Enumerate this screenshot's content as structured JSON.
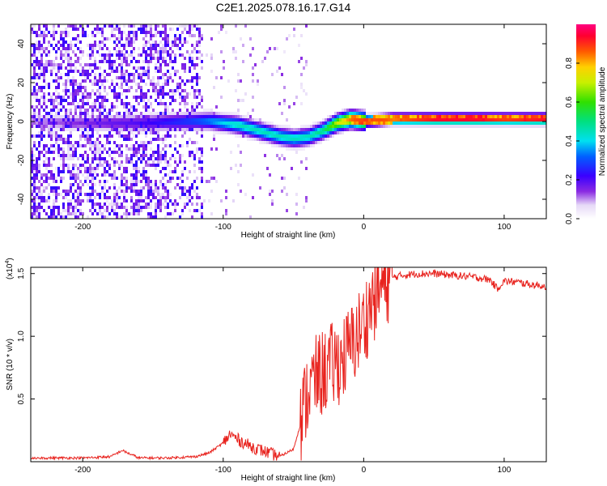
{
  "title": "C2E1.2025.078.16.17.G14",
  "chart_data": [
    {
      "type": "heatmap",
      "xlabel": "Height of straight line (km)",
      "ylabel": "Frequency (Hz)",
      "xlim": [
        -237,
        130
      ],
      "ylim": [
        -50,
        50
      ],
      "xticks": [
        -200,
        -100,
        0,
        100
      ],
      "yticks": [
        -40,
        -20,
        0,
        20,
        40
      ],
      "colorbar": {
        "label": "Normalized spectral amplitude",
        "range": [
          0,
          1
        ],
        "ticks": [
          0.0,
          0.2,
          0.4,
          0.6,
          0.8
        ]
      },
      "ridge": {
        "description_x": [
          -237,
          -200,
          -160,
          -120,
          -110,
          -100,
          -90,
          -80,
          -70,
          -60,
          -50,
          -40,
          -30,
          -20,
          -10,
          0,
          20,
          50,
          80,
          100,
          130
        ],
        "freq": [
          1,
          0,
          0,
          1,
          1,
          0,
          -1,
          -3,
          -5,
          -7,
          -8,
          -7,
          -4,
          0,
          2,
          1,
          2,
          2,
          2,
          2,
          2
        ],
        "peak_amplitude": [
          0.1,
          0.15,
          0.2,
          0.3,
          0.35,
          0.4,
          0.45,
          0.45,
          0.45,
          0.45,
          0.45,
          0.45,
          0.5,
          0.7,
          0.85,
          0.9,
          0.85,
          0.95,
          0.95,
          0.9,
          0.95
        ]
      }
    },
    {
      "type": "line",
      "xlabel": "Height of straight line (km)",
      "ylabel": "SNR (10 * v/v)",
      "yscale_label": "(x10",
      "yscale_exp": "4",
      "yscale_close": ")",
      "xlim": [
        -237,
        130
      ],
      "ylim": [
        0,
        1.55
      ],
      "xticks": [
        -200,
        -100,
        0,
        100
      ],
      "yticks": [
        0.5,
        1.0,
        1.5
      ],
      "series": [
        {
          "color": "#e8231e",
          "x": [
            -237,
            -220,
            -200,
            -180,
            -172,
            -160,
            -140,
            -120,
            -110,
            -100,
            -95,
            -90,
            -80,
            -70,
            -60,
            -50,
            -45,
            -40,
            -35,
            -30,
            -25,
            -20,
            -15,
            -10,
            -5,
            0,
            5,
            10,
            15,
            20,
            30,
            40,
            50,
            60,
            70,
            80,
            90,
            95,
            100,
            110,
            120,
            130
          ],
          "y": [
            0.03,
            0.03,
            0.03,
            0.04,
            0.09,
            0.03,
            0.03,
            0.04,
            0.07,
            0.15,
            0.22,
            0.18,
            0.12,
            0.08,
            0.04,
            0.1,
            0.3,
            0.55,
            0.65,
            0.7,
            0.75,
            0.78,
            0.82,
            0.9,
            1.0,
            1.1,
            1.25,
            1.35,
            1.42,
            1.47,
            1.49,
            1.5,
            1.5,
            1.49,
            1.48,
            1.47,
            1.45,
            1.38,
            1.44,
            1.43,
            1.41,
            1.4
          ]
        }
      ]
    }
  ]
}
